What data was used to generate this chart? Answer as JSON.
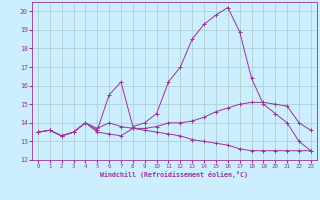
{
  "xlabel": "Windchill (Refroidissement éolien,°C)",
  "xlim": [
    -0.5,
    23.5
  ],
  "ylim": [
    12,
    20.5
  ],
  "yticks": [
    12,
    13,
    14,
    15,
    16,
    17,
    18,
    19,
    20
  ],
  "xticks": [
    0,
    1,
    2,
    3,
    4,
    5,
    6,
    7,
    8,
    9,
    10,
    11,
    12,
    13,
    14,
    15,
    16,
    17,
    18,
    19,
    20,
    21,
    22,
    23
  ],
  "bg_color": "#cceeff",
  "line_color": "#993399",
  "grid_color": "#aacccc",
  "line1_x": [
    0,
    1,
    2,
    3,
    4,
    5,
    6,
    7,
    8,
    9,
    10,
    11,
    12,
    13,
    14,
    15,
    16,
    17,
    18,
    19,
    20,
    21,
    22,
    23
  ],
  "line1_y": [
    13.5,
    13.6,
    13.3,
    13.5,
    14.0,
    13.7,
    14.0,
    13.8,
    13.7,
    13.7,
    13.8,
    14.0,
    14.0,
    14.1,
    14.3,
    14.6,
    14.8,
    15.0,
    15.1,
    15.1,
    15.0,
    14.9,
    14.0,
    13.6
  ],
  "line2_x": [
    0,
    1,
    2,
    3,
    4,
    5,
    6,
    7,
    8,
    9,
    10,
    11,
    12,
    13,
    14,
    15,
    16,
    17,
    18,
    19,
    20,
    21,
    22,
    23
  ],
  "line2_y": [
    13.5,
    13.6,
    13.3,
    13.5,
    14.0,
    13.5,
    13.4,
    13.3,
    13.7,
    13.6,
    13.5,
    13.4,
    13.3,
    13.1,
    13.0,
    12.9,
    12.8,
    12.6,
    12.5,
    12.5,
    12.5,
    12.5,
    12.5,
    12.5
  ],
  "line3_x": [
    0,
    1,
    2,
    3,
    4,
    5,
    6,
    7,
    8,
    9,
    10,
    11,
    12,
    13,
    14,
    15,
    16,
    17,
    18,
    19,
    20,
    21,
    22,
    23
  ],
  "line3_y": [
    13.5,
    13.6,
    13.3,
    13.5,
    14.0,
    13.6,
    15.5,
    16.2,
    13.8,
    14.0,
    14.5,
    16.2,
    17.0,
    18.5,
    19.3,
    19.8,
    20.2,
    18.9,
    16.4,
    15.0,
    14.5,
    14.0,
    13.0,
    12.5
  ]
}
